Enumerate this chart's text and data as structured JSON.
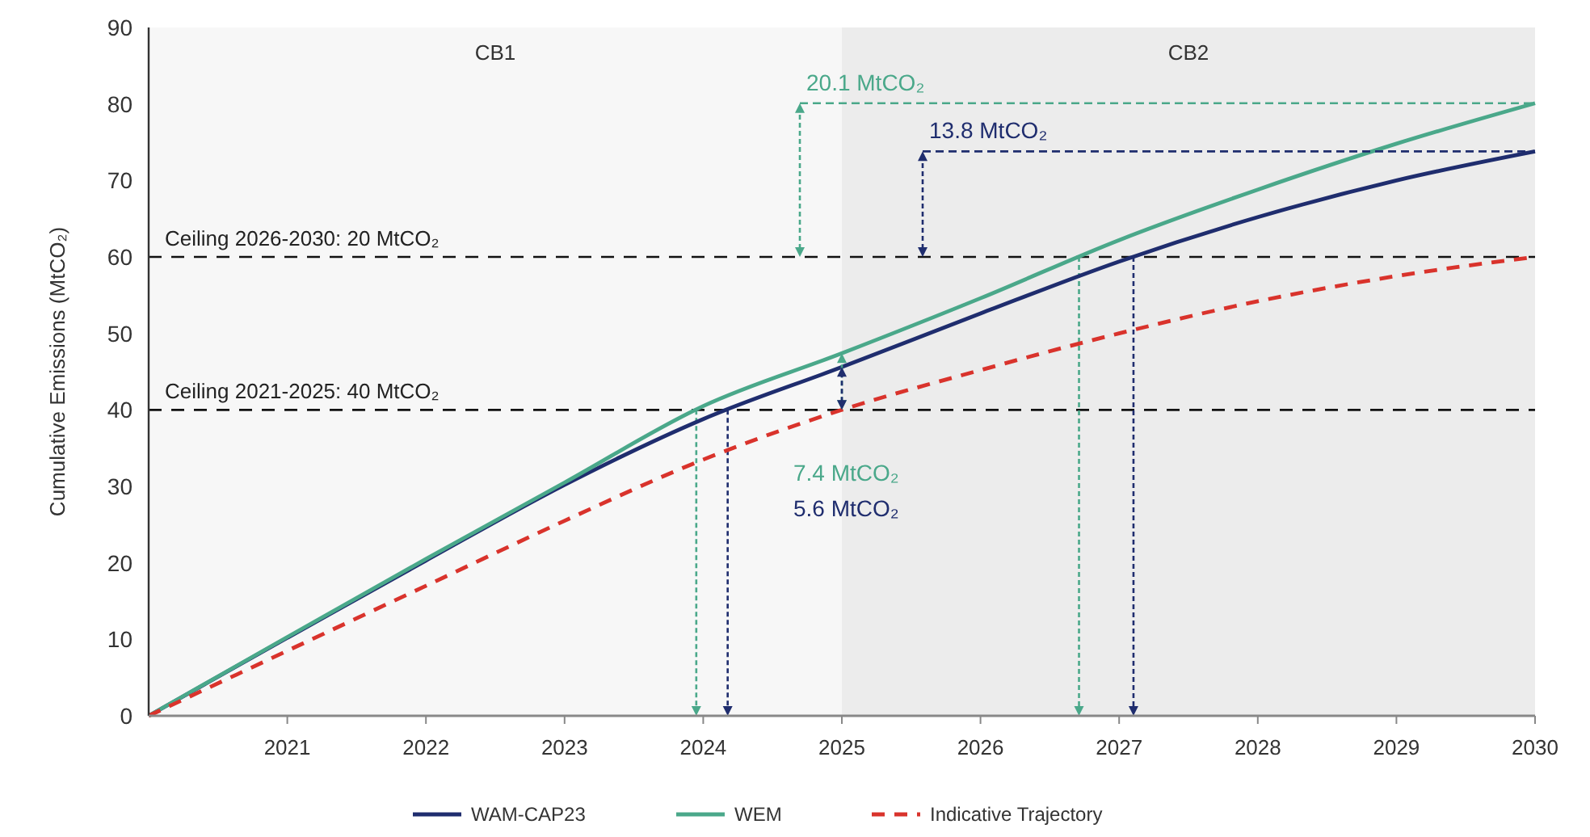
{
  "chart_data": {
    "type": "line",
    "ylabel": "Cumulative Emissions (MtCO₂)",
    "xlim": [
      2020,
      2030
    ],
    "xticks": [
      2021,
      2022,
      2023,
      2024,
      2025,
      2026,
      2027,
      2028,
      2029,
      2030
    ],
    "ylim": [
      0,
      90
    ],
    "yticks": [
      0,
      10,
      20,
      30,
      40,
      50,
      60,
      70,
      80,
      90
    ],
    "x": [
      2020,
      2021,
      2022,
      2023,
      2024,
      2025,
      2026,
      2027,
      2028,
      2029,
      2030
    ],
    "series": [
      {
        "name": "WAM-CAP23",
        "color": "#1f2d6e",
        "line_style": "solid",
        "values": [
          0,
          10.2,
          20.3,
          30.2,
          38.8,
          45.6,
          52.6,
          59.4,
          65.2,
          70,
          73.8
        ]
      },
      {
        "name": "WEM",
        "color": "#4aa88a",
        "line_style": "solid",
        "values": [
          0,
          10.3,
          20.5,
          30.5,
          40.5,
          47.4,
          54.6,
          62.2,
          68.8,
          74.8,
          80.1
        ]
      },
      {
        "name": "Indicative Trajectory",
        "color": "#d9332c",
        "line_style": "dashed",
        "values": [
          0,
          8.5,
          17,
          25.5,
          33.5,
          40,
          45.2,
          50,
          54.2,
          57.5,
          60
        ]
      }
    ],
    "ref_lines": [
      {
        "axis": "y",
        "value": 60,
        "color": "#111111",
        "line_style": "dashed"
      },
      {
        "axis": "y",
        "value": 40,
        "color": "#111111",
        "line_style": "dashed"
      }
    ],
    "bands": [
      {
        "axis": "x",
        "from": 2020,
        "to": 2025,
        "label": "CB1",
        "color": "#f7f7f7"
      },
      {
        "axis": "x",
        "from": 2025,
        "to": 2030,
        "label": "CB2",
        "color": "#ececec"
      }
    ],
    "annotations": [
      "Ceiling 2026-2030: 20 MtCO₂",
      "Ceiling 2021-2025: 40 MtCO₂",
      "20.1 MtCO₂",
      "13.8 MtCO₂",
      "7.4 MtCO₂",
      "5.6 MtCO₂"
    ],
    "grid": false,
    "legend": "bottom"
  }
}
